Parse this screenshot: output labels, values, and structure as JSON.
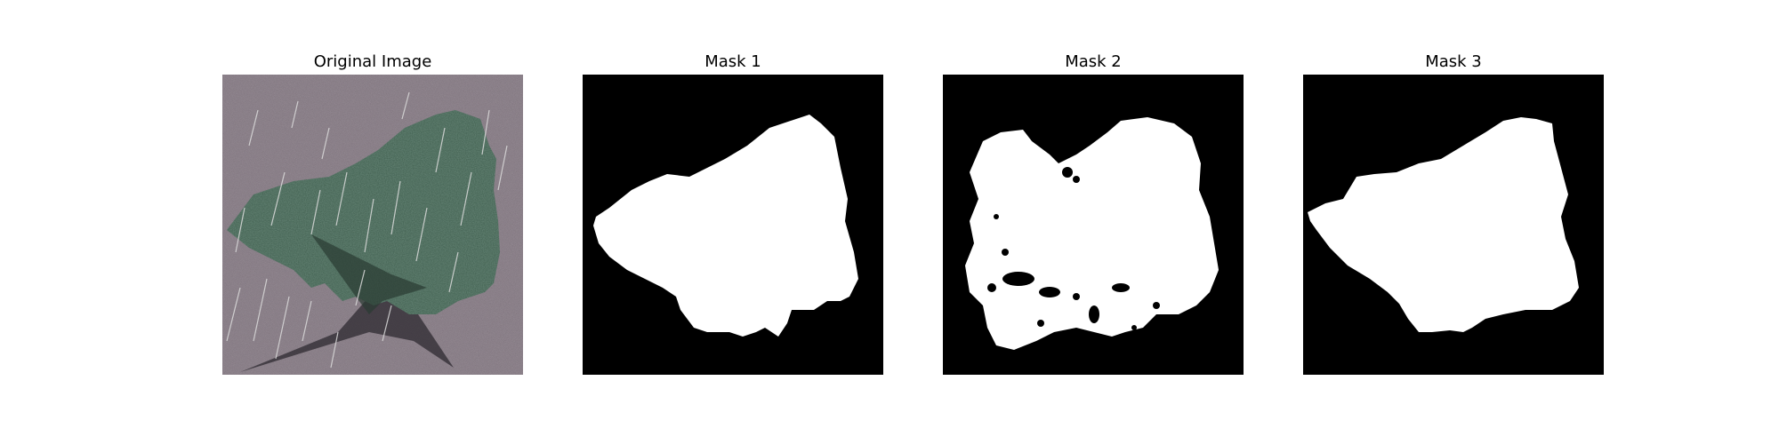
{
  "figure": {
    "panels": [
      {
        "title": "Original Image",
        "kind": "photo",
        "description_icon": "leaf-photo"
      },
      {
        "title": "Mask 1",
        "kind": "mask"
      },
      {
        "title": "Mask 2",
        "kind": "mask"
      },
      {
        "title": "Mask 3",
        "kind": "mask"
      }
    ]
  },
  "colors": {
    "background": "#ffffff",
    "mask_bg": "#000000",
    "mask_fg": "#ffffff",
    "photo_ground": "#7a6f78",
    "leaf": "#3f5e4e",
    "shadow": "#2e2a30",
    "rain": "#d9d9d9"
  }
}
